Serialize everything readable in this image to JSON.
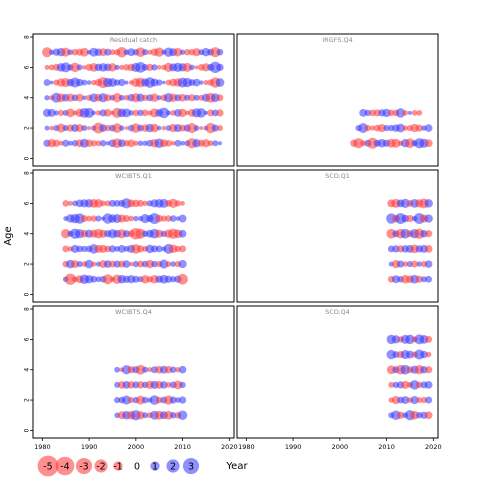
{
  "chart_data": {
    "type": "scatter",
    "subtype": "bubble residual plot, panels by survey",
    "ylabel": "Age",
    "xlabel": "Year",
    "x_ticks": [
      1980,
      1990,
      2000,
      2010,
      2020
    ],
    "y_ticks": [
      0,
      2,
      4,
      6,
      8
    ],
    "xlim": [
      1978,
      2021
    ],
    "ylim": [
      -0.5,
      8.2
    ],
    "colors": {
      "positive": "#3333ff",
      "negative": "#ff3333",
      "background": "#ffffff",
      "frame": "#000000"
    },
    "legend": {
      "placement": "bottom-left",
      "labels": [
        "-5",
        "-4",
        "-3",
        "-2",
        "-1",
        "0",
        "1",
        "2",
        "3"
      ],
      "values": [
        -5,
        -4,
        -3,
        -2,
        -1,
        0,
        1,
        2,
        3
      ]
    },
    "panels": [
      {
        "title": "Residual catch",
        "grid": [
          [
            1981,
            2018,
            1,
            [
              -1.0,
              0.8,
              -0.5,
              1.2,
              0.4,
              -0.9,
              -1.5,
              0.7
            ]
          ],
          [
            1981,
            2018,
            2,
            [
              0.6,
              -1.4,
              0.9,
              -0.3,
              1.1,
              -1.6,
              0.5,
              -0.8
            ]
          ],
          [
            1981,
            2018,
            3,
            [
              -0.7,
              1.3,
              -1.1,
              0.4,
              -1.5,
              0.8,
              1.6,
              -0.4
            ]
          ],
          [
            1981,
            2018,
            4,
            [
              1.2,
              -0.6,
              0.7,
              -1.3,
              0.5,
              -0.9,
              1.4,
              -1.2
            ]
          ],
          [
            1981,
            2018,
            5,
            [
              1.4,
              -0.5,
              1.0,
              -1.6,
              0.3,
              1.5,
              -1.1,
              0.8
            ]
          ],
          [
            1981,
            2018,
            6,
            [
              -1.3,
              1.1,
              -0.4,
              0.9,
              -1.2,
              0.6,
              1.8,
              -0.7
            ]
          ],
          [
            1981,
            2018,
            7,
            [
              -0.8,
              -1.4,
              0.5,
              -0.6,
              1.0,
              -1.5,
              0.7,
              1.2
            ]
          ]
        ]
      },
      {
        "title": "IRGFS.Q4",
        "grid": [
          [
            2003,
            2019,
            1,
            [
              -1.5,
              1.4,
              1.0,
              -1.2,
              0.8,
              -0.6,
              1.3,
              -1.6
            ]
          ],
          [
            2004,
            2019,
            2,
            [
              -0.6,
              0.9,
              -1.1,
              1.3,
              0.7,
              -0.5,
              0.8,
              -1.0
            ]
          ],
          [
            2005,
            2013,
            3,
            [
              -0.9,
              1.2,
              1.0,
              -0.7
            ]
          ],
          [
            2014,
            2017,
            3,
            [
              -0.6,
              -0.5,
              0.4
            ]
          ]
        ]
      },
      {
        "title": "WCIBTS.Q1",
        "grid": [
          [
            1985,
            2010,
            1,
            [
              -1.8,
              0.9,
              -1.3,
              0.7,
              1.1,
              -0.6,
              0.8,
              1.2
            ]
          ],
          [
            1985,
            2010,
            2,
            [
              -1.0,
              0.6,
              -0.8,
              1.0,
              -0.5,
              0.7,
              -0.9,
              1.1
            ]
          ],
          [
            1985,
            2010,
            3,
            [
              0.8,
              -0.9,
              0.6,
              1.0,
              -1.3,
              0.9,
              -0.7,
              1.5
            ]
          ],
          [
            1985,
            2010,
            4,
            [
              -1.2,
              0.8,
              -1.0,
              1.4,
              -1.6,
              0.9,
              1.5,
              -1.8
            ]
          ],
          [
            1985,
            2010,
            5,
            [
              -0.8,
              1.2,
              0.7,
              -0.9,
              1.5,
              -0.6,
              1.7,
              0.4
            ]
          ],
          [
            1985,
            2010,
            6,
            [
              -1.1,
              0.9,
              -0.7,
              1.6,
              0.8,
              -1.3,
              1.2,
              -0.5
            ]
          ]
        ]
      },
      {
        "title": "SCO.Q1",
        "grid": [
          [
            2011,
            2019,
            1,
            [
              -1.5,
              0.7,
              0.9,
              -1.0,
              1.2,
              -0.8
            ]
          ],
          [
            2011,
            2019,
            2,
            [
              0.5,
              -0.7,
              0.9,
              -0.6,
              0.8,
              -0.9
            ]
          ],
          [
            2011,
            2019,
            3,
            [
              1.0,
              -0.8,
              1.3,
              0.9,
              -1.1,
              1.4
            ]
          ],
          [
            2011,
            2019,
            4,
            [
              -1.7,
              1.2,
              -1.0,
              1.6,
              -1.3,
              1.1
            ]
          ],
          [
            2011,
            2019,
            5,
            [
              0.9,
              1.6,
              -1.2,
              1.8,
              0.7,
              -1.0
            ]
          ],
          [
            2011,
            2019,
            6,
            [
              -1.0,
              1.7,
              -0.8,
              1.3,
              1.5,
              -1.6
            ]
          ]
        ]
      },
      {
        "title": "WCIBTS.Q4",
        "grid": [
          [
            1996,
            2010,
            1,
            [
              -1.5,
              1.2,
              -0.9,
              0.7,
              -1.1,
              1.4
            ]
          ],
          [
            1996,
            2010,
            2,
            [
              0.8,
              -1.2,
              1.0,
              -0.7,
              1.3,
              0.6
            ]
          ],
          [
            1996,
            2010,
            3,
            [
              -1.0,
              0.9,
              -1.4,
              0.7,
              -0.8,
              1.1
            ]
          ],
          [
            1996,
            2010,
            4,
            [
              0.6,
              -1.3,
              1.1,
              -0.9,
              1.2,
              -0.5
            ]
          ]
        ]
      },
      {
        "title": "SCO.Q4",
        "grid": [
          [
            2011,
            2019,
            1,
            [
              0.7,
              -0.9,
              1.3,
              0.8,
              -1.2,
              1.4
            ]
          ],
          [
            2011,
            2019,
            2,
            [
              -0.6,
              1.0,
              -0.8,
              1.2,
              0.7,
              -0.9
            ]
          ],
          [
            2011,
            2019,
            3,
            [
              -1.2,
              0.8,
              1.0,
              -0.7,
              1.3,
              -0.8
            ]
          ],
          [
            2011,
            2019,
            4,
            [
              -1.4,
              0.9,
              -1.0,
              1.6,
              -1.3,
              1.1
            ]
          ],
          [
            2011,
            2019,
            5,
            [
              1.3,
              -0.7,
              1.0,
              1.5,
              -0.9,
              1.2
            ]
          ],
          [
            2011,
            2019,
            6,
            [
              1.4,
              -0.8,
              1.6,
              1.2,
              -1.0,
              1.3
            ]
          ]
        ]
      }
    ]
  }
}
